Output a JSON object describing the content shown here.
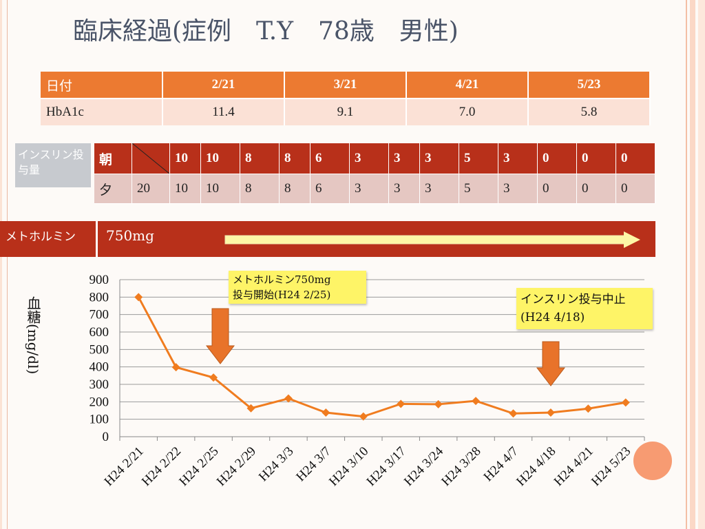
{
  "title": "臨床経過(症例　T.Y　78歳　男性)",
  "hba1c_table": {
    "header_label": "日付",
    "dates": [
      "2/21",
      "3/21",
      "4/21",
      "5/23"
    ],
    "row_label": "HbA1c",
    "values": [
      "11.4",
      "9.1",
      "7.0",
      "5.8"
    ]
  },
  "insulin": {
    "label": "インスリン投与量",
    "morning_label": "朝",
    "morning": [
      "",
      "10",
      "10",
      "8",
      "8",
      "6",
      "3",
      "3",
      "3",
      "5",
      "3",
      "0",
      "0",
      "0"
    ],
    "evening_label": "夕",
    "evening": [
      "20",
      "10",
      "10",
      "8",
      "8",
      "6",
      "3",
      "3",
      "3",
      "5",
      "3",
      "0",
      "0",
      "0"
    ]
  },
  "metformin": {
    "label": "メトホルミン",
    "dose": "750mg"
  },
  "callouts": {
    "metformin_start": [
      "メトホルミン750mg",
      "投与開始(H24 2/25)"
    ],
    "insulin_stop": [
      "インスリン投与中止",
      "(H24 4/18)"
    ]
  },
  "colors": {
    "header_orange": "#ec7a31",
    "insulin_red": "#b8301a",
    "line_orange": "#f07c1f",
    "arrow_orange": "#e8732a"
  },
  "chart_data": {
    "type": "line",
    "title": "",
    "ylabel": "血糖(mg/dl)",
    "xlabel": "",
    "ylim": [
      0,
      900
    ],
    "yticks": [
      0,
      100,
      200,
      300,
      400,
      500,
      600,
      700,
      800,
      900
    ],
    "categories": [
      "H24 2/21",
      "H24 2/22",
      "H24 2/25",
      "H24 2/29",
      "H24 3/3",
      "H24 3/7",
      "H24  3/10",
      "H24 3/17",
      "H24 3/24",
      "H24 3/28",
      "H24 4/7",
      "H24 4/18",
      "H24 4/21",
      "H24 5/23"
    ],
    "series": [
      {
        "values": [
          800,
          398,
          339,
          163,
          219,
          138,
          116,
          188,
          186,
          205,
          133,
          138,
          161,
          196
        ]
      }
    ],
    "grid": true,
    "marker": "diamond"
  }
}
